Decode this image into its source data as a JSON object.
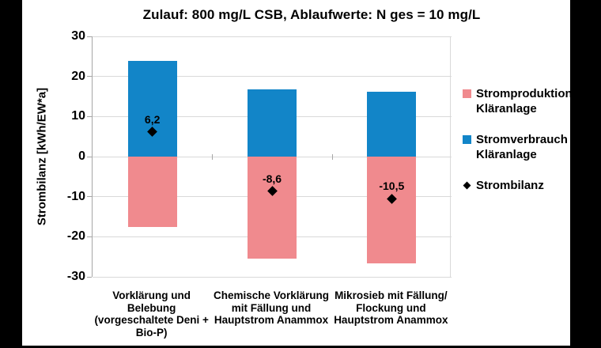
{
  "frame": {
    "letterbox_color": "#000000",
    "background": "#FFFFFF"
  },
  "chart_data": {
    "type": "bar",
    "stacked": true,
    "title": "Zulauf: 800 mg/L CSB, Ablaufwerte: N ges = 10 mg/L",
    "xlabel": "",
    "ylabel": "Strombilanz [kWh/EW*a]",
    "ylim": [
      -30,
      30
    ],
    "yticks": [
      30,
      20,
      10,
      0,
      -10,
      -20,
      -30
    ],
    "grid": true,
    "grid_color": "#D9D9D9",
    "axis_color": "#A6A6A6",
    "legend_position": "right",
    "categories": [
      [
        "Vorklärung und",
        "Belebung",
        "(vorgeschaltete Deni +",
        "Bio-P)"
      ],
      [
        "Chemische Vorklärung",
        "mit Fällung und",
        "Hauptstrom Anammox"
      ],
      [
        "Mikrosieb mit Fällung/",
        "Flockung und",
        "Hauptstrom Anammox"
      ]
    ],
    "series": [
      {
        "name": "Stromproduktion Kläranlage",
        "color": "#F08A8E",
        "values": [
          -17.6,
          -25.4,
          -26.7
        ]
      },
      {
        "name": "Stromverbrauch Kläranlage",
        "color": "#1285C8",
        "values": [
          23.8,
          16.8,
          16.2
        ]
      }
    ],
    "markers": {
      "name": "Strombilanz",
      "color": "#000000",
      "values": [
        6.2,
        -8.6,
        -10.5
      ],
      "labels": [
        "6,2",
        "-8,6",
        "-10,5"
      ]
    },
    "legend": [
      {
        "swatch": "square",
        "color": "#F08A8E",
        "lines": [
          "Stromproduktion",
          "Kläranlage"
        ]
      },
      {
        "swatch": "square",
        "color": "#1285C8",
        "lines": [
          "Stromverbrauch",
          "Kläranlage"
        ]
      },
      {
        "swatch": "diamond",
        "color": "#000000",
        "lines": [
          "Strombilanz"
        ]
      }
    ]
  }
}
